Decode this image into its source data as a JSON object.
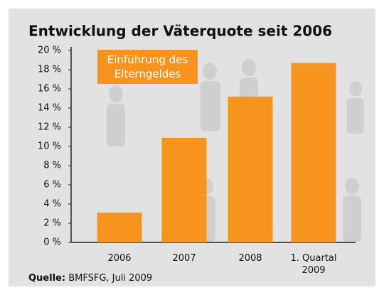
{
  "chart_data": {
    "type": "bar",
    "title": "Entwicklung der Väterquote seit 2006",
    "categories": [
      "2006",
      "2007",
      "2008",
      "1. Quartal 2009"
    ],
    "values": [
      3.1,
      10.9,
      15.2,
      18.7
    ],
    "color": "#f7941d",
    "ylim": [
      0,
      20
    ],
    "yticks": [
      {
        "value": 0,
        "label": "0 %"
      },
      {
        "value": 2,
        "label": "2 %"
      },
      {
        "value": 4,
        "label": "4 %"
      },
      {
        "value": 6,
        "label": "6 %"
      },
      {
        "value": 8,
        "label": "8 %"
      },
      {
        "value": 10,
        "label": "10 %"
      },
      {
        "value": 12,
        "label": "12 %"
      },
      {
        "value": 14,
        "label": "14 %"
      },
      {
        "value": 16,
        "label": "16 %"
      },
      {
        "value": 18,
        "label": "18 %"
      },
      {
        "value": 20,
        "label": "20 %"
      }
    ],
    "annotation": "Einführung des Elterngeldes",
    "source_label": "Quelle:",
    "source": "BMFSFG, Juli 2009"
  }
}
